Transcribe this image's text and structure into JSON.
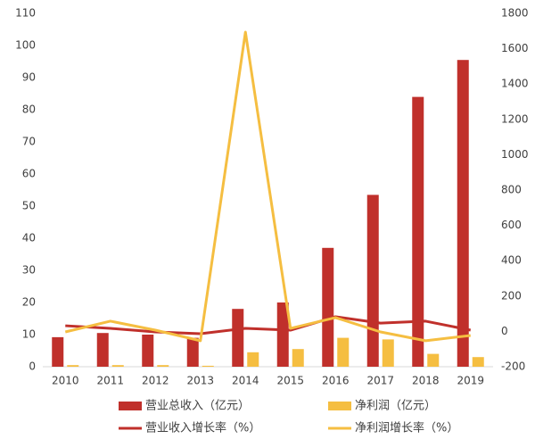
{
  "chart_data": {
    "type": "bar",
    "categories": [
      "2010",
      "2011",
      "2012",
      "2013",
      "2014",
      "2015",
      "2016",
      "2017",
      "2018",
      "2019"
    ],
    "series": [
      {
        "name": "营业总收入（亿元）",
        "type": "bar",
        "color": "#c0302b",
        "values": [
          9.2,
          10.5,
          10,
          9,
          18,
          20,
          37,
          53.5,
          84,
          95.5
        ]
      },
      {
        "name": "净利润（亿元）",
        "type": "bar",
        "color": "#f5be41",
        "values": [
          0.5,
          0.5,
          0.5,
          0.3,
          4.5,
          5.5,
          9,
          8.5,
          4,
          3
        ]
      },
      {
        "name": "营业收入增长率（%）",
        "type": "line",
        "axis": "y2",
        "color": "#c0302b",
        "values": [
          32,
          17,
          -3,
          -13,
          17,
          7,
          83,
          47,
          58,
          7
        ]
      },
      {
        "name": "净利润增长率（%）",
        "type": "line",
        "axis": "y2",
        "color": "#f5be41",
        "values": [
          -3,
          58,
          7,
          -53,
          1694,
          17,
          78,
          -3,
          -53,
          -23
        ]
      }
    ],
    "ylim": [
      0,
      110
    ],
    "yticks": [
      0,
      10,
      20,
      30,
      40,
      50,
      60,
      70,
      80,
      90,
      100,
      110
    ],
    "y2lim": [
      -200,
      1800
    ],
    "y2ticks": [
      -200,
      0,
      200,
      400,
      600,
      800,
      1000,
      1200,
      1400,
      1600,
      1800
    ],
    "grid": false,
    "legend": "bottom"
  }
}
